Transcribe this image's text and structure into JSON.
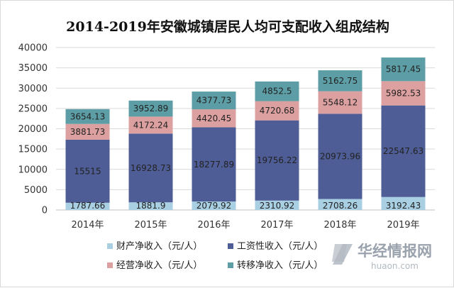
{
  "chart_data": {
    "type": "bar",
    "stacked": true,
    "title": "2014-2019年安徽城镇居民人均可支配收入组成结构",
    "categories": [
      "2014年",
      "2015年",
      "2016年",
      "2017年",
      "2018年",
      "2019年"
    ],
    "ylim": [
      0,
      40000
    ],
    "yticks": [
      0,
      5000,
      10000,
      15000,
      20000,
      25000,
      30000,
      35000,
      40000
    ],
    "grid": true,
    "legend_position": "bottom",
    "series": [
      {
        "name": "财产净收入（元/人）",
        "color": "#a9cfe3",
        "values": [
          1787.66,
          1881.9,
          2079.92,
          2310.92,
          2708.26,
          3192.43
        ],
        "labels": [
          "1787.66",
          "1881.9",
          "2079.92",
          "2310.92",
          "2708.26",
          "3192.43"
        ]
      },
      {
        "name": "工资性收入（元/人）",
        "color": "#4f5d96",
        "values": [
          15515,
          16928.73,
          18277.89,
          19756.22,
          20973.96,
          22547.63
        ],
        "labels": [
          "15515",
          "16928.73",
          "18277.89",
          "19756.22",
          "20973.96",
          "22547.63"
        ]
      },
      {
        "name": "经营净收入（元/人）",
        "color": "#dda0a0",
        "values": [
          3881.73,
          4172.24,
          4420.45,
          4720.68,
          5548.12,
          5982.53
        ],
        "labels": [
          "3881.73",
          "4172.24",
          "4420.45",
          "4720.68",
          "5548.12",
          "5982.53"
        ]
      },
      {
        "name": "转移净收入（元/人）",
        "color": "#5d9ea6",
        "values": [
          3654.13,
          3952.89,
          4377.73,
          4852.5,
          5162.75,
          5817.45
        ],
        "labels": [
          "3654.13",
          "3952.89",
          "4377.73",
          "4852.5",
          "5162.75",
          "5817.45"
        ]
      }
    ]
  },
  "watermark": {
    "text": "华经情报网",
    "url": "huaon.com"
  }
}
